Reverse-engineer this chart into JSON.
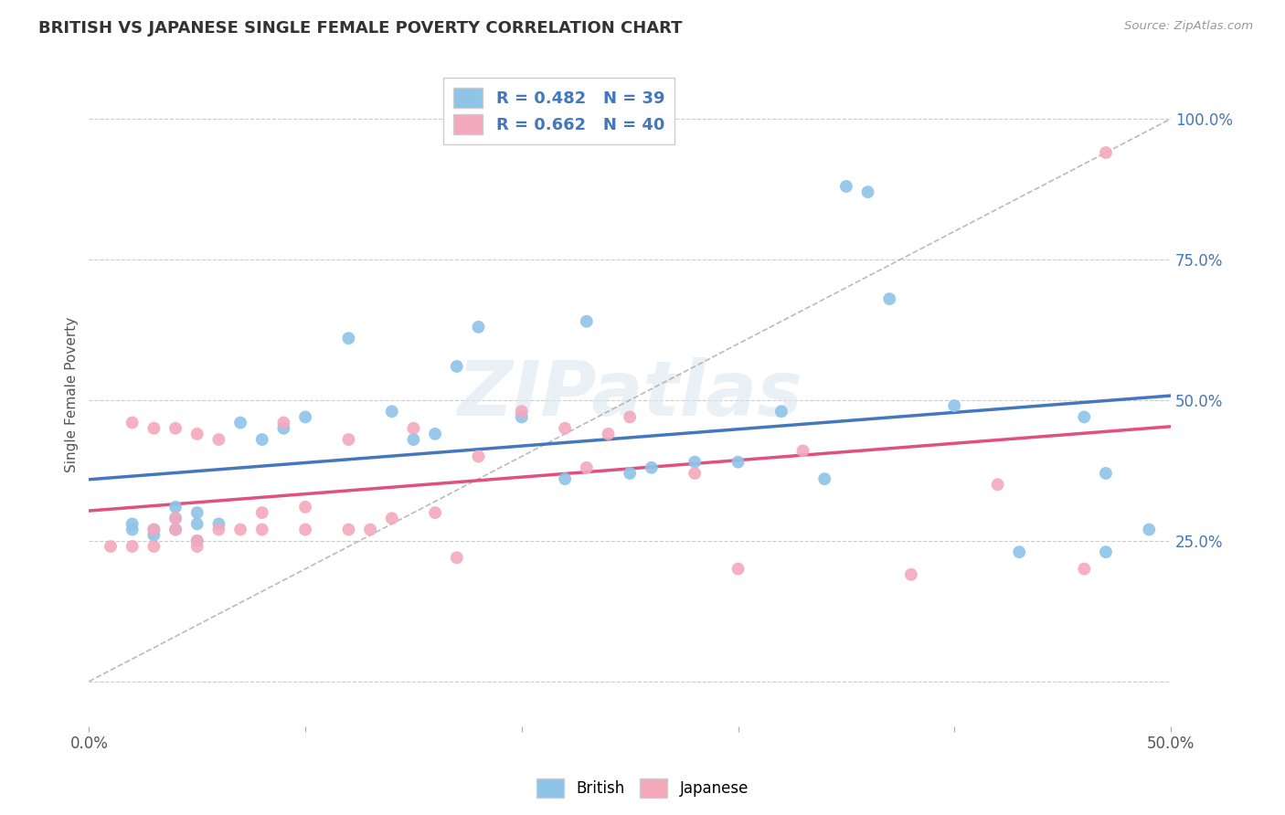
{
  "title": "BRITISH VS JAPANESE SINGLE FEMALE POVERTY CORRELATION CHART",
  "source_text": "Source: ZipAtlas.com",
  "ylabel": "Single Female Poverty",
  "xlim": [
    0.0,
    0.5
  ],
  "ylim": [
    -0.08,
    1.1
  ],
  "british_R": 0.482,
  "british_N": 39,
  "japanese_R": 0.662,
  "japanese_N": 40,
  "british_color": "#8ec4e8",
  "japanese_color": "#f4a8bc",
  "british_line_color": "#4477bb",
  "japanese_line_color": "#e05080",
  "ref_line_color": "#aaaaaa",
  "british_scatter_x": [
    0.02,
    0.02,
    0.03,
    0.03,
    0.04,
    0.04,
    0.04,
    0.05,
    0.05,
    0.05,
    0.06,
    0.07,
    0.08,
    0.09,
    0.1,
    0.12,
    0.14,
    0.15,
    0.16,
    0.17,
    0.18,
    0.2,
    0.22,
    0.23,
    0.25,
    0.26,
    0.28,
    0.3,
    0.32,
    0.34,
    0.35,
    0.36,
    0.37,
    0.4,
    0.43,
    0.46,
    0.47,
    0.47,
    0.49
  ],
  "british_scatter_y": [
    0.27,
    0.28,
    0.26,
    0.27,
    0.27,
    0.29,
    0.31,
    0.25,
    0.28,
    0.3,
    0.28,
    0.46,
    0.43,
    0.45,
    0.47,
    0.61,
    0.48,
    0.43,
    0.44,
    0.56,
    0.63,
    0.47,
    0.36,
    0.64,
    0.37,
    0.38,
    0.39,
    0.39,
    0.48,
    0.36,
    0.88,
    0.87,
    0.68,
    0.49,
    0.23,
    0.47,
    0.23,
    0.37,
    0.27
  ],
  "japanese_scatter_x": [
    0.01,
    0.02,
    0.02,
    0.03,
    0.03,
    0.03,
    0.04,
    0.04,
    0.04,
    0.05,
    0.05,
    0.05,
    0.06,
    0.06,
    0.07,
    0.08,
    0.08,
    0.09,
    0.1,
    0.1,
    0.12,
    0.12,
    0.13,
    0.14,
    0.15,
    0.16,
    0.17,
    0.18,
    0.2,
    0.22,
    0.23,
    0.24,
    0.25,
    0.28,
    0.3,
    0.33,
    0.38,
    0.42,
    0.46,
    0.47
  ],
  "japanese_scatter_y": [
    0.24,
    0.24,
    0.46,
    0.24,
    0.27,
    0.45,
    0.27,
    0.29,
    0.45,
    0.24,
    0.25,
    0.44,
    0.27,
    0.43,
    0.27,
    0.27,
    0.3,
    0.46,
    0.27,
    0.31,
    0.27,
    0.43,
    0.27,
    0.29,
    0.45,
    0.3,
    0.22,
    0.4,
    0.48,
    0.45,
    0.38,
    0.44,
    0.47,
    0.37,
    0.2,
    0.41,
    0.19,
    0.35,
    0.2,
    0.94
  ],
  "ytick_positions": [
    0.0,
    0.25,
    0.5,
    0.75,
    1.0
  ],
  "right_ytick_positions": [
    0.25,
    0.5,
    0.75,
    1.0
  ],
  "right_ytick_labels": [
    "25.0%",
    "50.0%",
    "75.0%",
    "100.0%"
  ],
  "xtick_positions": [
    0.0,
    0.1,
    0.2,
    0.3,
    0.4,
    0.5
  ],
  "xtick_labels": [
    "0.0%",
    "",
    "",
    "",
    "",
    "50.0%"
  ],
  "watermark_text": "ZIPatlas",
  "background_color": "#ffffff",
  "grid_color": "#cccccc",
  "title_fontsize": 13,
  "axis_label_fontsize": 11,
  "tick_fontsize": 12,
  "legend_fontsize": 13
}
